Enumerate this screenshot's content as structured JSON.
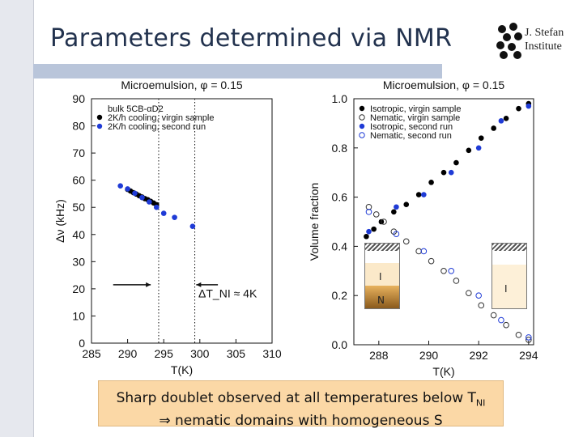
{
  "header": {
    "title": "Parameters determined via NMR"
  },
  "logo": {
    "line1": "J. Stefan",
    "line2": "Institute",
    "icon": "molecule-dots-icon"
  },
  "caption": {
    "line1_prefix": "Sharp doublet observed at all temperatures below T",
    "line1_sub": "NI",
    "line2": "⇒ nematic domains with homogeneous S"
  },
  "tubes": {
    "left_top_label": "I",
    "left_bottom_label": "N",
    "right_label": "I"
  },
  "chart_data": [
    {
      "type": "scatter",
      "title": "Microemulsion, φ = 0.15",
      "xlabel": "T(K)",
      "ylabel": "Δν (kHz)",
      "xlim": [
        285,
        310
      ],
      "ylim": [
        0,
        90
      ],
      "xticks": [
        285,
        290,
        295,
        300,
        305,
        310
      ],
      "yticks": [
        0,
        10,
        20,
        30,
        40,
        50,
        60,
        70,
        80,
        90
      ],
      "legend_position": "top-left",
      "annotation": "ΔT_NI ≈ 4K",
      "vlines": [
        294.3,
        299.3
      ],
      "series": [
        {
          "name": "bulk 5CB-αD2",
          "marker": "none",
          "color": "#000000",
          "x": [],
          "y": []
        },
        {
          "name": "2K/h cooling, virgin sample",
          "marker": "filled",
          "color": "#000000",
          "x": [
            290.0,
            290.4,
            290.8,
            291.2,
            291.6,
            292.0,
            292.4,
            292.8,
            293.2,
            293.6,
            294.0
          ],
          "y": [
            56.6,
            56.0,
            55.4,
            54.9,
            54.3,
            53.8,
            53.2,
            52.8,
            52.2,
            51.6,
            51.0
          ]
        },
        {
          "name": "2K/h cooling, second run",
          "marker": "filled",
          "color": "#1f3bd6",
          "x": [
            289.0,
            290.0,
            291.0,
            292.0,
            293.0,
            294.0,
            295.0,
            296.5,
            299.0
          ],
          "y": [
            57.9,
            56.8,
            55.2,
            53.6,
            52.0,
            50.0,
            47.8,
            46.3,
            43.0
          ]
        }
      ]
    },
    {
      "type": "scatter",
      "title": "Microemulsion, φ = 0.15",
      "xlabel": "T(K)",
      "ylabel": "Volume fraction",
      "xlim": [
        287,
        294.2
      ],
      "ylim": [
        0.0,
        1.0
      ],
      "xticks": [
        288,
        290,
        292,
        294
      ],
      "yticks": [
        0.0,
        0.2,
        0.4,
        0.6,
        0.8,
        1.0
      ],
      "legend_position": "top-left",
      "series": [
        {
          "name": "Isotropic, virgin sample",
          "marker": "filled",
          "color": "#000000",
          "x": [
            287.5,
            287.8,
            288.1,
            288.6,
            289.1,
            289.6,
            290.1,
            290.6,
            291.1,
            291.6,
            292.1,
            292.6,
            293.1,
            293.6,
            294.0
          ],
          "y": [
            0.44,
            0.47,
            0.5,
            0.54,
            0.57,
            0.61,
            0.66,
            0.7,
            0.74,
            0.79,
            0.84,
            0.88,
            0.92,
            0.96,
            0.98
          ]
        },
        {
          "name": "Nematic, virgin sample",
          "marker": "open",
          "color": "#333333",
          "x": [
            287.6,
            287.9,
            288.2,
            288.6,
            289.1,
            289.6,
            290.1,
            290.6,
            291.1,
            291.6,
            292.1,
            292.6,
            293.1,
            293.6,
            294.0
          ],
          "y": [
            0.56,
            0.53,
            0.5,
            0.46,
            0.42,
            0.38,
            0.34,
            0.3,
            0.26,
            0.21,
            0.16,
            0.12,
            0.08,
            0.04,
            0.02
          ]
        },
        {
          "name": "Isotropic, second run",
          "marker": "filled",
          "color": "#1f3bd6",
          "x": [
            287.6,
            288.7,
            289.8,
            290.9,
            292.0,
            292.9,
            294.0
          ],
          "y": [
            0.46,
            0.56,
            0.61,
            0.7,
            0.8,
            0.91,
            0.97
          ]
        },
        {
          "name": "Nematic, second run",
          "marker": "open",
          "color": "#1f3bd6",
          "x": [
            287.6,
            288.7,
            289.8,
            290.9,
            292.0,
            292.9,
            294.0
          ],
          "y": [
            0.54,
            0.45,
            0.38,
            0.3,
            0.2,
            0.1,
            0.03
          ]
        }
      ]
    }
  ]
}
